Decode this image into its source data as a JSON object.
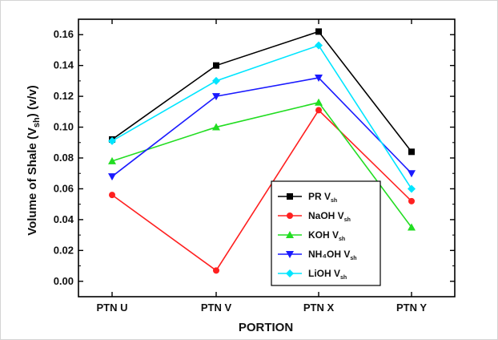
{
  "chart_data": {
    "type": "line",
    "xlabel": "PORTION",
    "ylabel_main": "Volume of Shale (V",
    "ylabel_sub": "sh",
    "ylabel_tail": ") (v/v)",
    "categories": [
      "PTN U",
      "PTN V",
      "PTN X",
      "PTN Y"
    ],
    "ylim": [
      -0.01,
      0.17
    ],
    "yticks": [
      "0.00",
      "0.02",
      "0.04",
      "0.06",
      "0.08",
      "0.10",
      "0.12",
      "0.14",
      "0.16"
    ],
    "grid": false,
    "legend_placement": "bottom-right",
    "series": [
      {
        "name": "PR V",
        "sub": "sh",
        "color": "#000000",
        "marker": "square",
        "values": [
          0.092,
          0.14,
          0.162,
          0.084
        ]
      },
      {
        "name": "NaOH V",
        "sub": "sh",
        "color": "#ff2020",
        "marker": "circle",
        "values": [
          0.056,
          0.007,
          0.111,
          0.052
        ]
      },
      {
        "name": "KOH V",
        "sub": "sh",
        "color": "#22dd22",
        "marker": "triangle-up",
        "values": [
          0.078,
          0.1,
          0.116,
          0.035
        ]
      },
      {
        "name": "NH₄OH V",
        "sub": "sh",
        "color": "#1a1aff",
        "marker": "triangle-down",
        "values": [
          0.068,
          0.12,
          0.132,
          0.07
        ]
      },
      {
        "name": "LiOH V",
        "sub": "sh",
        "color": "#00e5ff",
        "marker": "diamond",
        "values": [
          0.091,
          0.13,
          0.153,
          0.06
        ]
      }
    ]
  }
}
